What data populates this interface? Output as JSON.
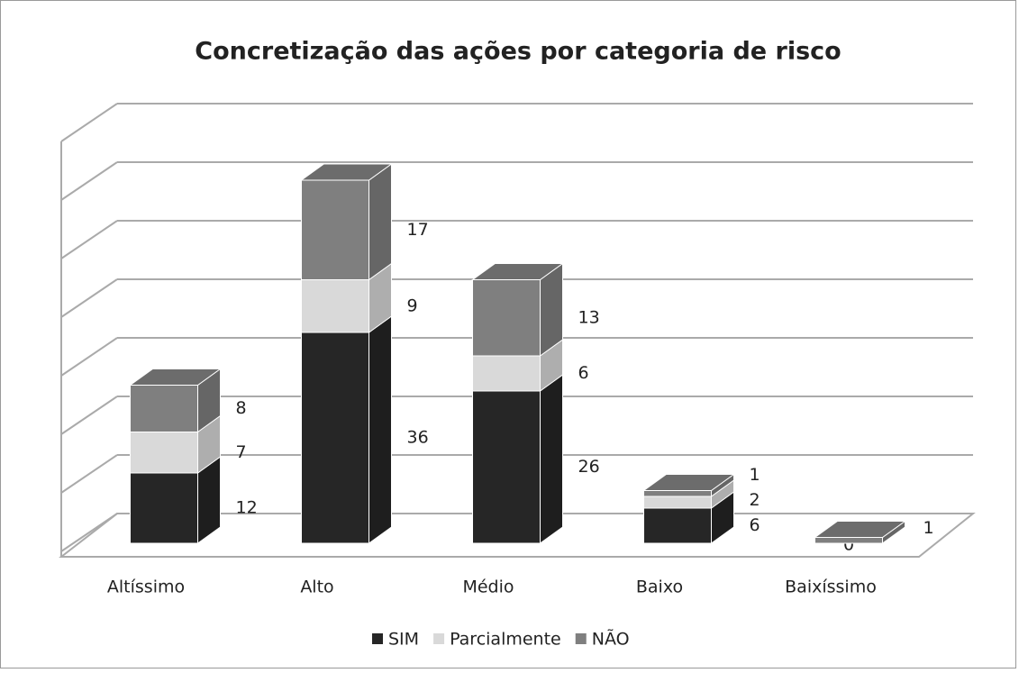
{
  "chart_data": {
    "type": "bar3d_stacked",
    "title": "Concretização das ações por categoria de risco",
    "categories": [
      "Altíssimo",
      "Alto",
      "Médio",
      "Baixo",
      "Baixíssimo"
    ],
    "series": [
      {
        "name": "SIM",
        "color": "#262626",
        "values": [
          12,
          36,
          26,
          6,
          0
        ]
      },
      {
        "name": "Parcialmente",
        "color": "#d9d9d9",
        "values": [
          7,
          9,
          6,
          2,
          null
        ]
      },
      {
        "name": "NÃO",
        "color": "#7f7f7f",
        "values": [
          8,
          17,
          13,
          1,
          1
        ]
      }
    ],
    "ylim": [
      0,
      70
    ],
    "yticks": [
      0,
      10,
      20,
      30,
      40,
      50,
      60,
      70
    ],
    "grid": true,
    "legend": "bottom"
  }
}
